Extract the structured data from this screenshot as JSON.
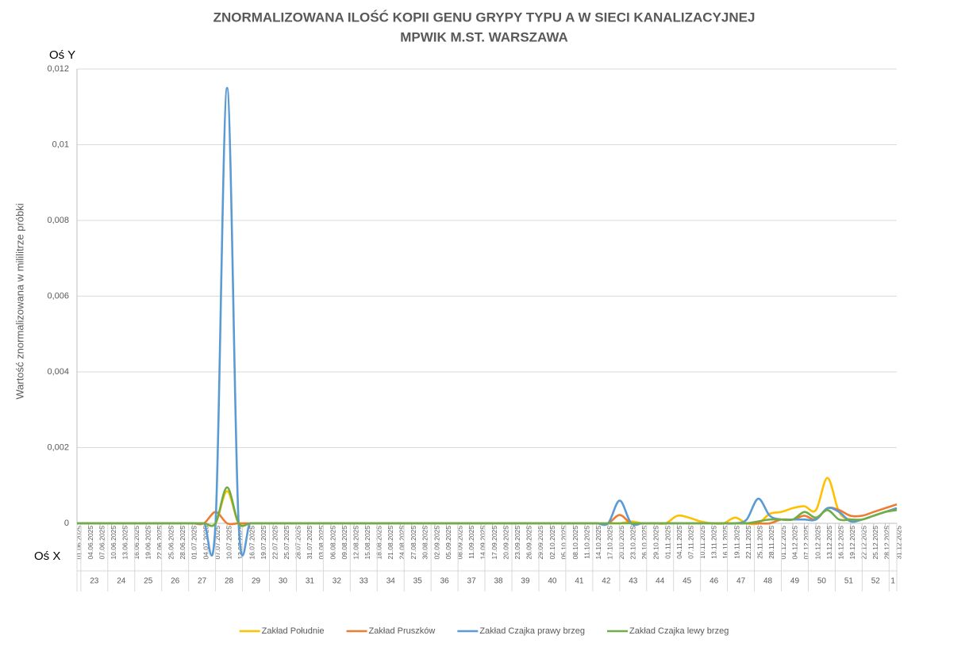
{
  "chart_data": {
    "type": "line",
    "title": [
      "ZNORMALIZOWANA ILOŚĆ KOPII GENU GRYPY TYPU A W SIECI KANALIZACYJNEJ",
      "MPWIK M.ST. WARSZAWA"
    ],
    "y_corner_label": "Oś Y",
    "x_corner_label": "Oś X",
    "ylabel": "Wartość znormalizowana  w mililitrze próbki",
    "x": [
      "01.06.2025",
      "04.06.2025",
      "07.06.2025",
      "10.06.2025",
      "13.06.2025",
      "16.06.2025",
      "19.06.2025",
      "22.06.2025",
      "25.06.2025",
      "28.06.2025",
      "01.07.2025",
      "04.07.2025",
      "07.07.2025",
      "10.07.2025",
      "13.07.2025",
      "16.07.2025",
      "19.07.2025",
      "22.07.2025",
      "25.07.2025",
      "28.07.2025",
      "31.07.2025",
      "03.08.2025",
      "06.08.2025",
      "09.08.2025",
      "12.08.2025",
      "15.08.2025",
      "18.08.2025",
      "21.08.2025",
      "24.08.2025",
      "27.08.2025",
      "30.08.2025",
      "02.09.2025",
      "05.09.2025",
      "08.09.2025",
      "11.09.2025",
      "14.09.2025",
      "17.09.2025",
      "20.09.2025",
      "23.09.2025",
      "26.09.2025",
      "29.09.2025",
      "02.10.2025",
      "05.10.2025",
      "08.10.2025",
      "11.10.2025",
      "14.10.2025",
      "17.10.2025",
      "20.10.2025",
      "23.10.2025",
      "26.10.2025",
      "29.10.2025",
      "01.11.2025",
      "04.11.2025",
      "07.11.2025",
      "10.11.2025",
      "13.11.2025",
      "16.11.2025",
      "19.11.2025",
      "22.11.2025",
      "25.11.2025",
      "28.11.2025",
      "01.12.2025",
      "04.12.2025",
      "07.12.2025",
      "10.12.2025",
      "13.12.2025",
      "16.12.2025",
      "19.12.2025",
      "22.12.2025",
      "25.12.2025",
      "28.12.2025",
      "31.12.2025"
    ],
    "weeks": [
      "23",
      "24",
      "25",
      "26",
      "27",
      "28",
      "29",
      "30",
      "31",
      "32",
      "33",
      "34",
      "35",
      "36",
      "37",
      "38",
      "39",
      "40",
      "41",
      "42",
      "43",
      "44",
      "45",
      "46",
      "47",
      "48",
      "49",
      "50",
      "51",
      "52",
      "1"
    ],
    "ylim": [
      0,
      0.012
    ],
    "yticks": [
      0,
      {
        "value": 0.002,
        "label": "0,002"
      },
      {
        "value": 0.004,
        "label": "0,004"
      },
      {
        "value": 0.006,
        "label": "0,006"
      },
      {
        "value": 0.008,
        "label": "0,008"
      },
      {
        "value": 0.01,
        "label": "0,01"
      },
      {
        "value": 0.012,
        "label": "0,012"
      }
    ],
    "grid": true,
    "legend": "bottom",
    "series": [
      {
        "name": "Zakład Południe",
        "color": "#ffc000",
        "values": [
          0,
          0,
          0,
          0,
          0,
          0,
          0,
          0,
          0,
          0,
          0,
          0,
          0,
          0.00085,
          0,
          0,
          0,
          0,
          0,
          0,
          0,
          0,
          0,
          0,
          0,
          0,
          0,
          0,
          0,
          0,
          0,
          0,
          0,
          0,
          0,
          0,
          0,
          0,
          0,
          0,
          0,
          0,
          0,
          0,
          0,
          0,
          0,
          0,
          5e-05,
          0,
          0,
          0,
          0.0002,
          0.00015,
          5e-05,
          0,
          0,
          0.00015,
          0,
          0,
          0.00025,
          0.0003,
          0.0004,
          0.00045,
          0.00035,
          0.0012,
          0.0003,
          0.0001,
          0.0001,
          0.0002,
          0.0003,
          0.0004
        ]
      },
      {
        "name": "Zakład Pruszków",
        "color": "#ed7d31",
        "values": [
          0,
          0,
          0,
          0,
          0,
          0,
          0,
          0,
          0,
          0,
          0,
          0,
          0.0003,
          0,
          0,
          0,
          0,
          0,
          0,
          0,
          0,
          0,
          0,
          0,
          0,
          0,
          0,
          0,
          0,
          0,
          0,
          0,
          0,
          0,
          0,
          0,
          0,
          0,
          0,
          0,
          0,
          0,
          0,
          0,
          0,
          0,
          0,
          0.00022,
          0,
          0,
          0,
          0,
          0,
          0,
          0,
          0,
          0,
          0,
          0,
          0,
          0,
          0.0001,
          0.0001,
          0.0002,
          0.0001,
          0.0004,
          0.00035,
          0.0002,
          0.0002,
          0.0003,
          0.0004,
          0.0005
        ]
      },
      {
        "name": "Zakład Czajka prawy brzeg",
        "color": "#5b9bd5",
        "values": [
          0,
          0,
          0,
          0,
          0,
          0,
          0,
          0,
          0,
          0,
          0,
          0,
          0,
          0.0115,
          0,
          0,
          0,
          0,
          0,
          0,
          0,
          0,
          0,
          0,
          0,
          0,
          0,
          0,
          0,
          0,
          0,
          0,
          0,
          0,
          0,
          0,
          0,
          0,
          0,
          0,
          0,
          0,
          0,
          0,
          0,
          0,
          0,
          0.0006,
          0,
          0,
          0,
          0,
          0,
          0,
          0,
          0,
          0,
          0,
          0.0001,
          0.00065,
          0.0002,
          0.0001,
          0.0001,
          0.0001,
          0.0001,
          0.0004,
          0.0003,
          5e-05,
          0.0001,
          0.0002,
          0.0003,
          0.0004
        ]
      },
      {
        "name": "Zakład Czajka lewy brzeg",
        "color": "#70ad47",
        "values": [
          0,
          0,
          0,
          0,
          0,
          0,
          0,
          0,
          0,
          0,
          0,
          0,
          0,
          0.00095,
          0,
          0,
          0,
          0,
          0,
          0,
          0,
          0,
          0,
          0,
          0,
          0,
          0,
          0,
          0,
          0,
          0,
          0,
          0,
          0,
          0,
          0,
          0,
          0,
          0,
          0,
          0,
          0,
          0,
          0,
          0,
          0,
          0,
          0,
          0,
          0,
          0,
          0,
          0,
          0,
          0,
          0,
          0,
          0,
          0,
          5e-05,
          0.0001,
          0.0001,
          0.0001,
          0.0003,
          0.00015,
          0.00035,
          0.0001,
          0.0001,
          0.0001,
          0.0002,
          0.0003,
          0.00035
        ]
      }
    ]
  }
}
